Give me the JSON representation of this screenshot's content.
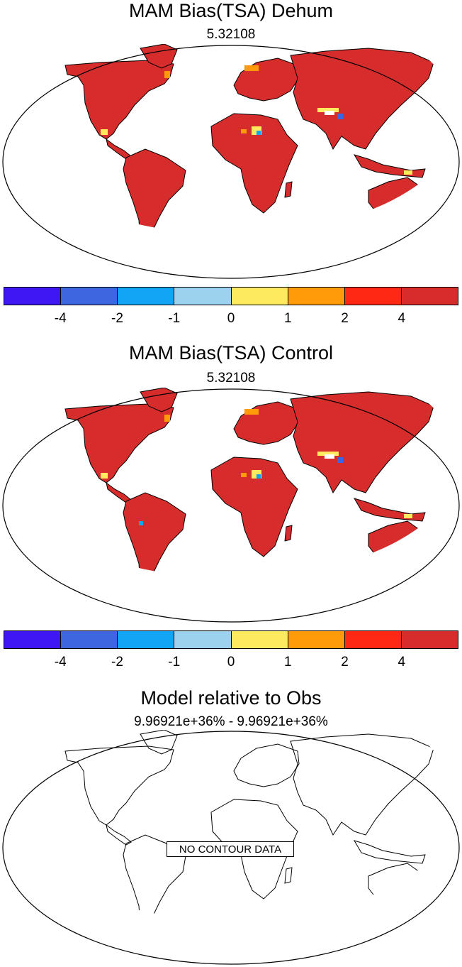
{
  "panels": [
    {
      "title": "MAM Bias(TSA) Dehum",
      "subtitle": "5.32108",
      "colorbar": {
        "colors": [
          "#3f17f2",
          "#3d66e0",
          "#12a5f5",
          "#9cd2ee",
          "#fdea5f",
          "#ff9b08",
          "#ff2814",
          "#d62d2c"
        ],
        "labels": [
          "-4",
          "-2",
          "-1",
          "0",
          "1",
          "2",
          "4"
        ]
      }
    },
    {
      "title": "MAM Bias(TSA) Control",
      "subtitle": "5.32108",
      "colorbar": {
        "colors": [
          "#3f17f2",
          "#3d66e0",
          "#12a5f5",
          "#9cd2ee",
          "#fdea5f",
          "#ff9b08",
          "#ff2814",
          "#d62d2c"
        ],
        "labels": [
          "-4",
          "-2",
          "-1",
          "0",
          "1",
          "2",
          "4"
        ]
      }
    },
    {
      "title": "Model relative to Obs",
      "subtitle": "9.96921e+36% - 9.96921e+36%",
      "overlay_label": "NO CONTOUR DATA"
    }
  ],
  "land_fill_color": "#d62d2c"
}
